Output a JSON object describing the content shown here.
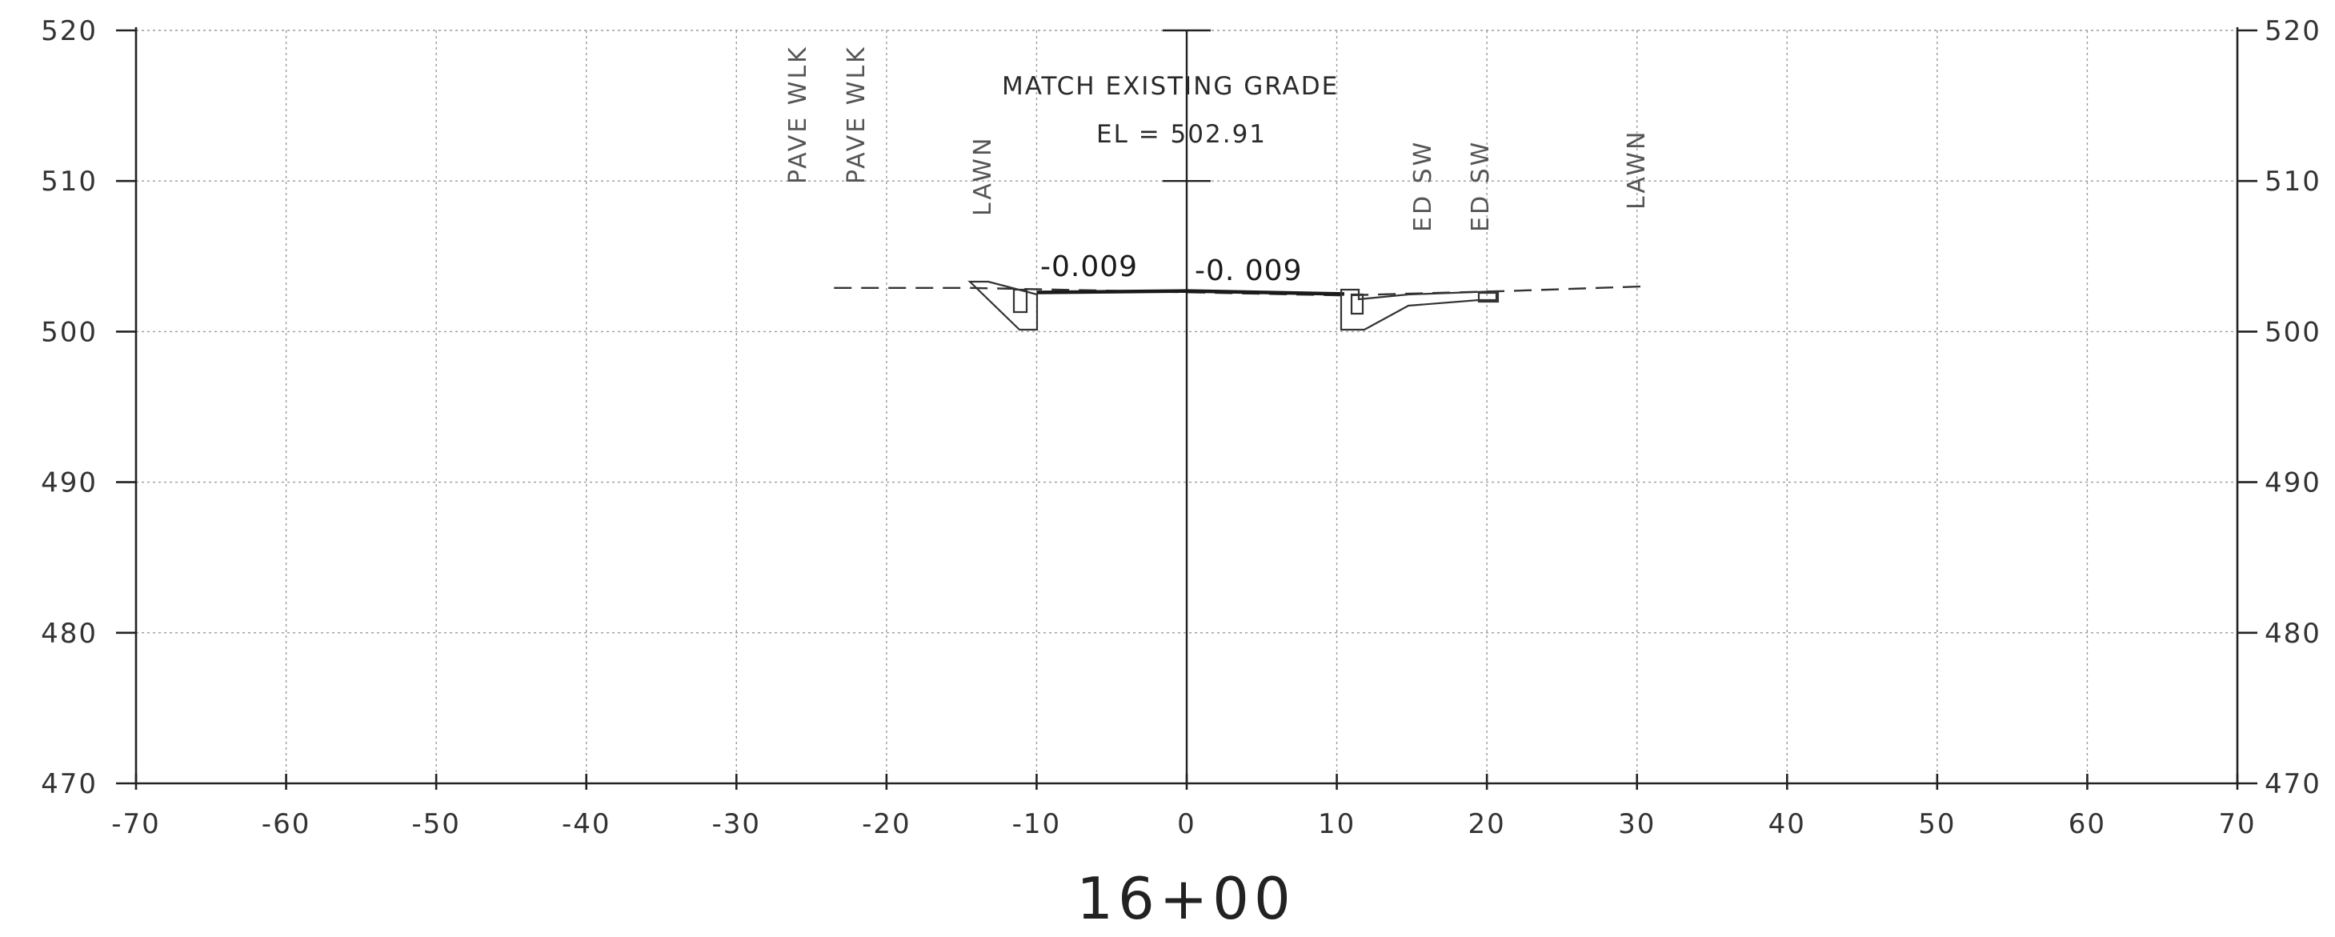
{
  "drawing": {
    "station": "16+00",
    "note_match": "MATCH EXISTING GRADE",
    "note_elevation": "EL = 502.91",
    "slope_left": "-0.009",
    "slope_right": "-0. 009",
    "callouts": [
      "PAVE WLK",
      "PAVE WLK",
      "LAWN",
      "ED SW",
      "ED SW",
      "LAWN"
    ],
    "colors": {
      "grid": "#9a9a9a",
      "frame": "#222222",
      "profile": "#1a1a1a"
    }
  },
  "chart_data": {
    "type": "line",
    "title": "16+00",
    "x_tick_labels": [
      "-70",
      "-60",
      "-50",
      "-40",
      "-30",
      "-20",
      "-10",
      "0",
      "10",
      "20",
      "30",
      "40",
      "50",
      "60",
      "70"
    ],
    "y_tick_labels": [
      {
        "left": "520",
        "right": "520"
      },
      {
        "left": "510",
        "right": "510"
      },
      {
        "left": "500",
        "right": "500"
      },
      {
        "left": "490",
        "right": "490"
      },
      {
        "left": "480",
        "right": "480"
      },
      {
        "left": "470",
        "right": "470"
      }
    ],
    "xlim": [
      -70,
      70
    ],
    "ylim": [
      470,
      520
    ],
    "grid": true,
    "series": [
      {
        "style": "dashed",
        "x": [
          -23.5,
          -14.5,
          10.5,
          21.5,
          30.5
        ],
        "y": [
          502.9,
          502.9,
          502.4,
          502.7,
          503.0
        ]
      },
      {
        "style": "solid",
        "x": [
          -10,
          0,
          10.5
        ],
        "y": [
          502.6,
          502.7,
          502.5
        ]
      }
    ]
  }
}
